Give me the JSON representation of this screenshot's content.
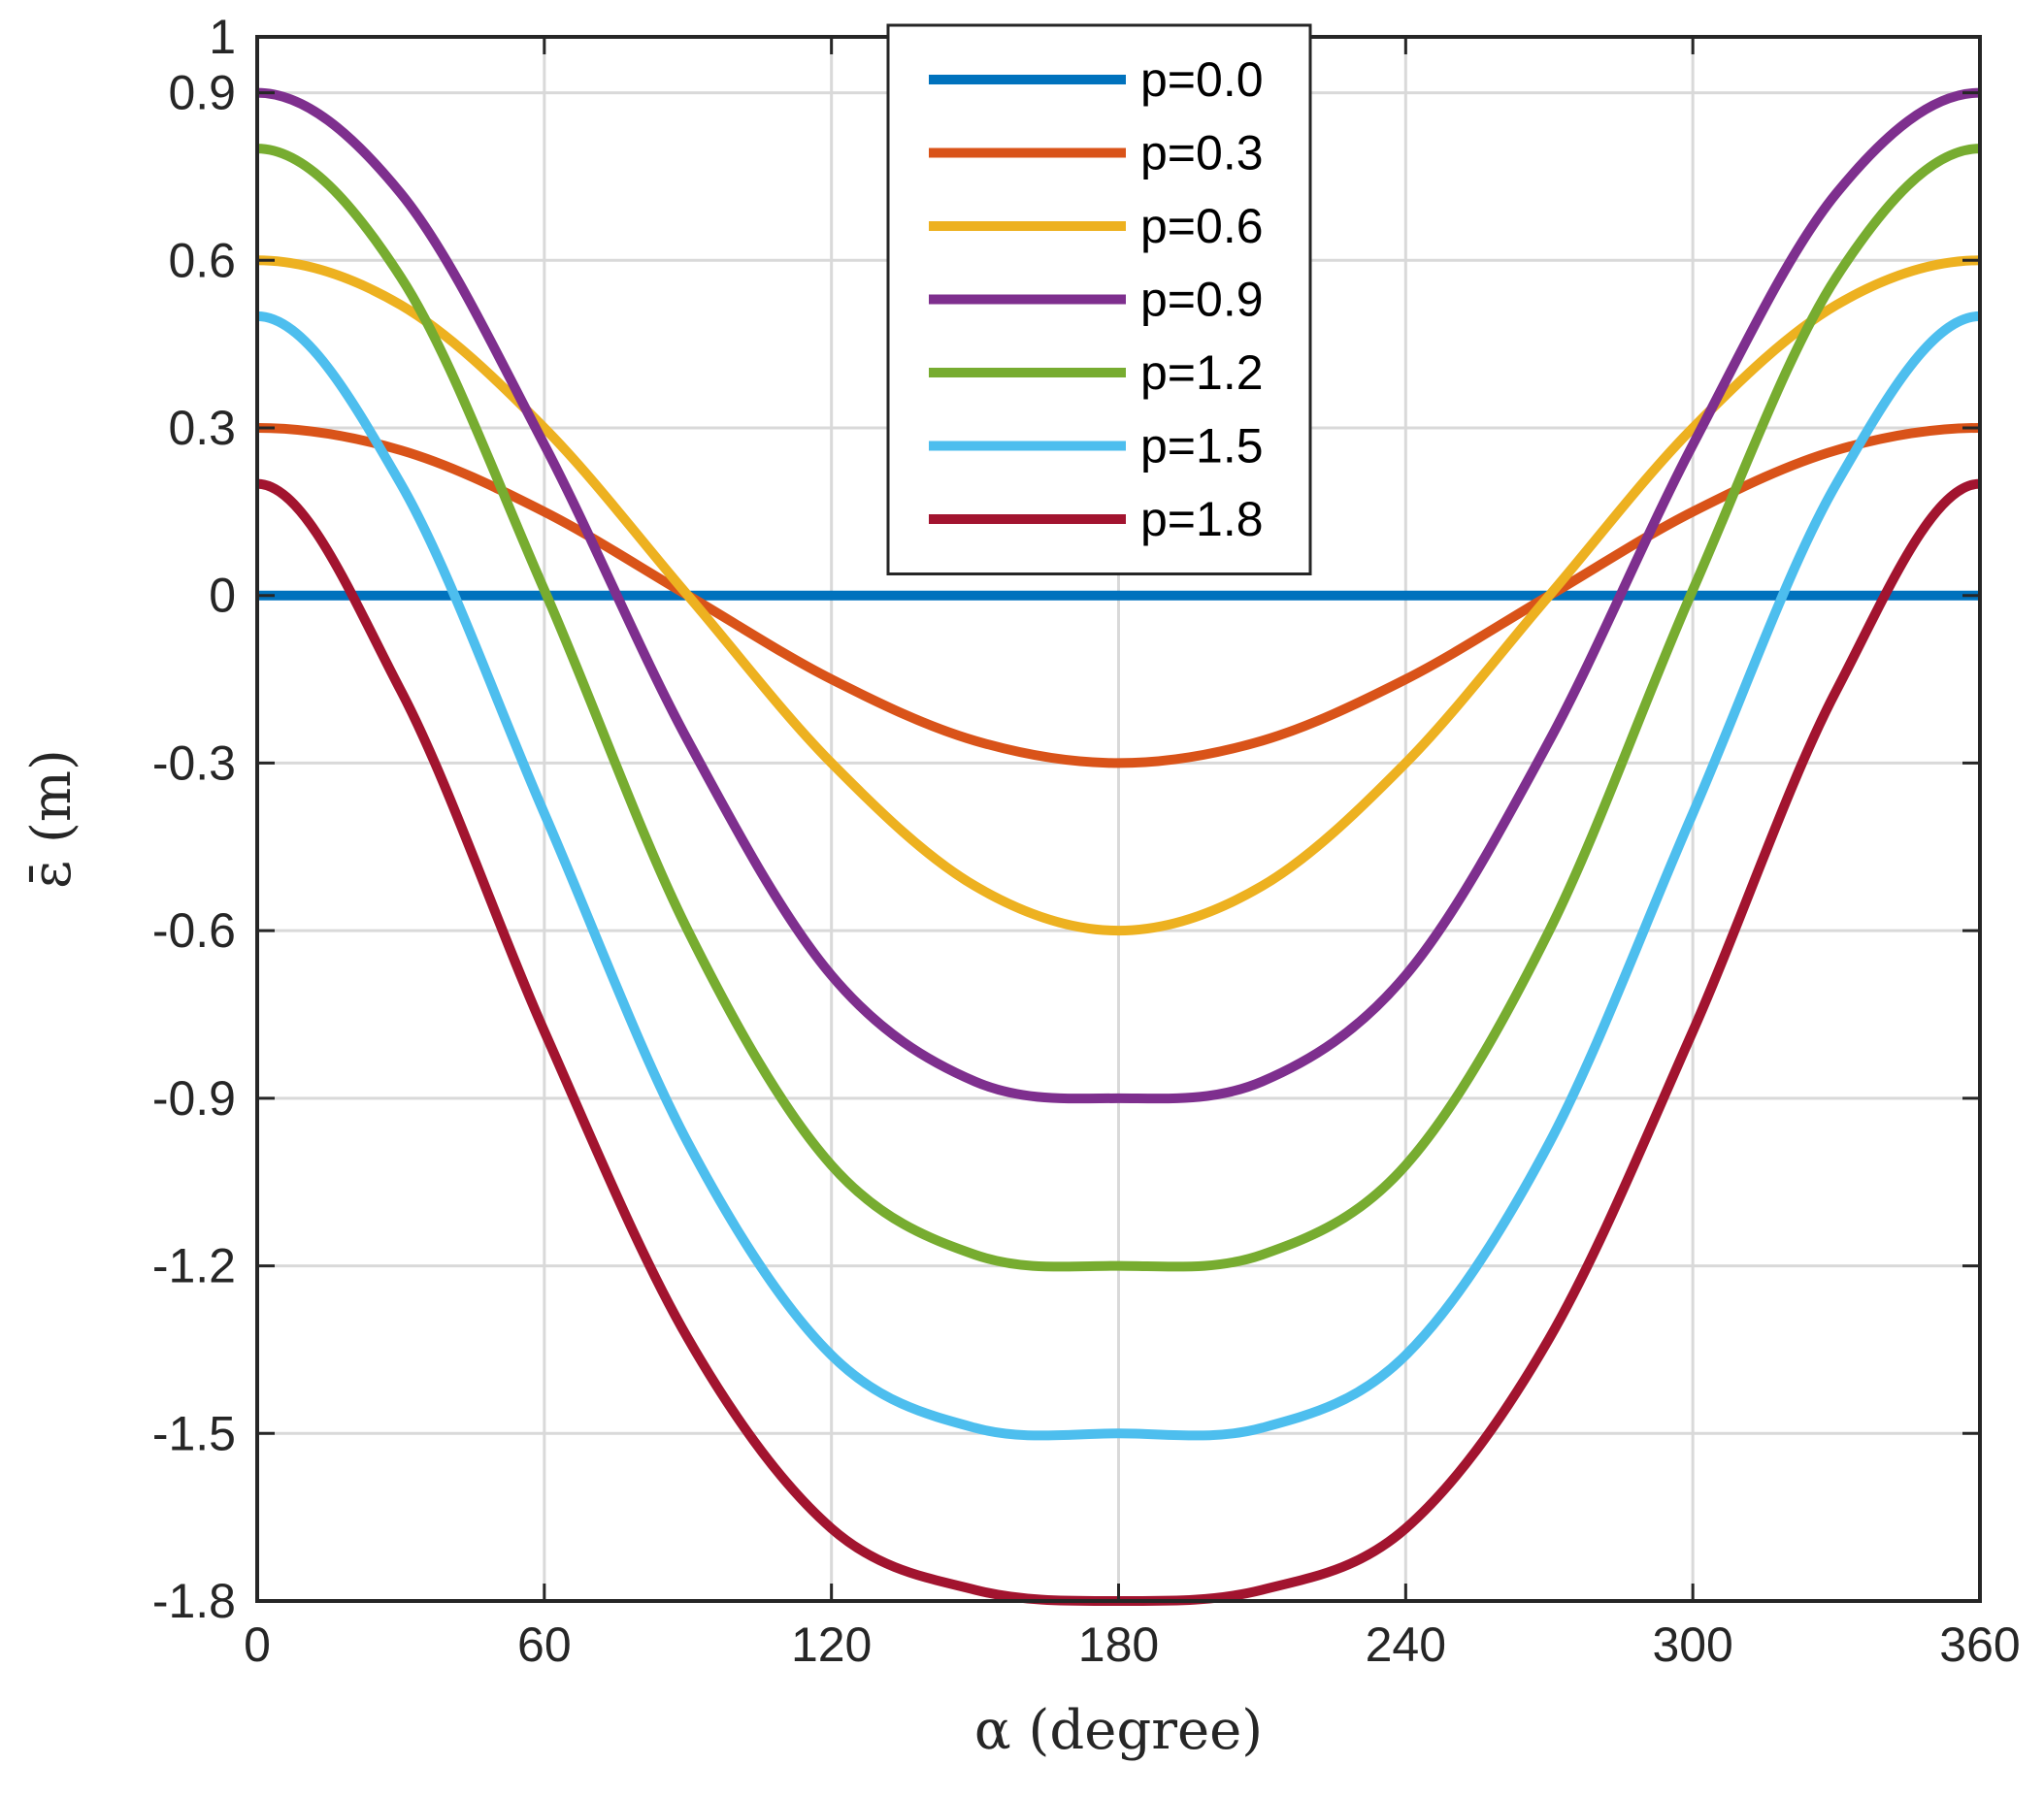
{
  "chart_data": {
    "type": "line",
    "xlabel": "α (degree)",
    "ylabel": "ε̄ (m)",
    "xlim": [
      0,
      360
    ],
    "ylim": [
      -1.8,
      1
    ],
    "xticks": [
      0,
      60,
      120,
      180,
      240,
      300,
      360
    ],
    "xtick_labels": [
      "0",
      "60",
      "120",
      "180",
      "240",
      "300",
      "360"
    ],
    "yticks": [
      -1.8,
      -1.5,
      -1.2,
      -0.9,
      -0.6,
      -0.3,
      0,
      0.3,
      0.6,
      0.9,
      1
    ],
    "ytick_labels": [
      "-1.8",
      "-1.5",
      "-1.2",
      "-0.9",
      "-0.6",
      "-0.3",
      "0",
      "0.3",
      "0.6",
      "0.9",
      "1"
    ],
    "grid": true,
    "legend_position": "top-center",
    "x": [
      0,
      30,
      60,
      90,
      120,
      150,
      180,
      210,
      240,
      270,
      300,
      330,
      360
    ],
    "series": [
      {
        "name": "p=0.0",
        "color": "#0072BD",
        "values": [
          0,
          0,
          0,
          0,
          0,
          0,
          0,
          0,
          0,
          0,
          0,
          0,
          0
        ]
      },
      {
        "name": "p=0.3",
        "color": "#D95319",
        "values": [
          0.3,
          0.26,
          0.15,
          0,
          -0.15,
          -0.26,
          -0.3,
          -0.26,
          -0.15,
          0,
          0.15,
          0.26,
          0.3
        ]
      },
      {
        "name": "p=0.6",
        "color": "#EDB120",
        "values": [
          0.6,
          0.52,
          0.3,
          0,
          -0.3,
          -0.52,
          -0.6,
          -0.52,
          -0.3,
          0,
          0.3,
          0.52,
          0.6
        ]
      },
      {
        "name": "p=0.9",
        "color": "#7E2F8E",
        "values": [
          0.9,
          0.72,
          0.27,
          -0.26,
          -0.68,
          -0.87,
          -0.9,
          -0.87,
          -0.68,
          -0.26,
          0.27,
          0.72,
          0.9
        ]
      },
      {
        "name": "p=1.2",
        "color": "#77AC30",
        "values": [
          0.8,
          0.57,
          0.01,
          -0.6,
          -1.02,
          -1.18,
          -1.2,
          -1.18,
          -1.02,
          -0.6,
          0.01,
          0.57,
          0.8
        ]
      },
      {
        "name": "p=1.5",
        "color": "#4DBEEE",
        "values": [
          0.5,
          0.2,
          -0.39,
          -0.98,
          -1.36,
          -1.49,
          -1.5,
          -1.49,
          -1.36,
          -0.98,
          -0.39,
          0.2,
          0.5
        ]
      },
      {
        "name": "p=1.8",
        "color": "#A2142F",
        "values": [
          0.2,
          -0.17,
          -0.78,
          -1.33,
          -1.67,
          -1.78,
          -1.8,
          -1.78,
          -1.67,
          -1.33,
          -0.78,
          -0.17,
          0.2
        ]
      }
    ]
  }
}
